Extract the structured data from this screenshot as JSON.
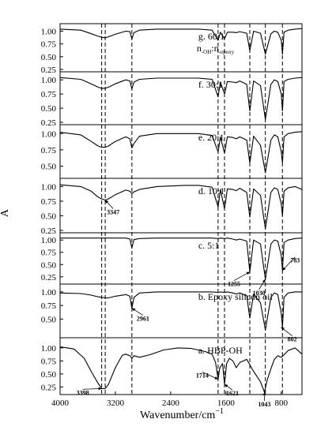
{
  "figure": {
    "xlabel": "Wavenumber/cm",
    "xlabel_exp": "−1",
    "ylabel": "A"
  },
  "chart_data": {
    "type": "line",
    "title": "",
    "xlabel": "Wavenumber/cm−1",
    "ylabel": "A",
    "xlim": [
      4000,
      500
    ],
    "x_reversed": true,
    "x_ticks": [
      "4000",
      "3200",
      "2400",
      "1600",
      "800"
    ],
    "grid": false,
    "reference_lines_cm": [
      3398,
      3347,
      2961,
      1714,
      1621,
      1255,
      1030,
      783
    ],
    "panels": [
      {
        "label": "g. 60:1",
        "label2": "n",
        "label2_sub1": "-OH",
        "label2_mid": ":n",
        "label2_sub2": "-epoxy",
        "ylim": [
          0.25,
          1.1
        ],
        "yticks": [
          "1.00",
          "0.75",
          "0.50",
          "0.25"
        ],
        "x": [
          4000,
          3700,
          3550,
          3450,
          3400,
          3347,
          3300,
          3200,
          3050,
          2990,
          2961,
          2930,
          2850,
          2600,
          2200,
          2000,
          1800,
          1714,
          1680,
          1621,
          1580,
          1500,
          1450,
          1400,
          1300,
          1255,
          1200,
          1100,
          1030,
          950,
          900,
          850,
          800,
          783,
          760,
          700,
          600,
          500
        ],
        "y": [
          1.04,
          1.02,
          0.95,
          0.9,
          0.88,
          0.87,
          0.89,
          0.94,
          1.0,
          0.99,
          0.85,
          0.97,
          1.02,
          1.04,
          1.04,
          1.04,
          1.02,
          0.82,
          0.98,
          0.85,
          0.98,
          0.98,
          0.97,
          0.99,
          0.96,
          0.62,
          1.0,
          0.96,
          0.55,
          0.95,
          1.0,
          0.98,
          0.82,
          0.55,
          0.98,
          1.02,
          1.04,
          1.05
        ]
      },
      {
        "label": "f. 30:1",
        "ylim": [
          0.25,
          1.1
        ],
        "yticks": [
          "1.00",
          "0.75",
          "0.50",
          "0.25"
        ],
        "x": [
          4000,
          3700,
          3550,
          3450,
          3400,
          3347,
          3300,
          3200,
          3050,
          2990,
          2961,
          2930,
          2850,
          2600,
          2200,
          2000,
          1800,
          1714,
          1680,
          1621,
          1580,
          1500,
          1450,
          1400,
          1300,
          1255,
          1200,
          1100,
          1030,
          950,
          900,
          850,
          800,
          783,
          760,
          700,
          600,
          500
        ],
        "y": [
          1.04,
          1.01,
          0.93,
          0.87,
          0.85,
          0.85,
          0.87,
          0.93,
          1.0,
          0.98,
          0.84,
          0.96,
          1.01,
          1.03,
          1.03,
          1.03,
          1.01,
          0.7,
          0.96,
          0.75,
          0.97,
          0.96,
          0.95,
          0.98,
          0.92,
          0.45,
          0.98,
          0.9,
          0.3,
          0.92,
          1.0,
          0.97,
          0.75,
          0.45,
          0.97,
          1.01,
          1.03,
          1.04
        ]
      },
      {
        "label": "e. 20:1",
        "ylim": [
          0.35,
          1.1
        ],
        "yticks": [
          "1.00",
          "0.75",
          "0.50"
        ],
        "x": [
          4000,
          3700,
          3550,
          3450,
          3400,
          3347,
          3300,
          3200,
          3050,
          2990,
          2961,
          2930,
          2850,
          2600,
          2200,
          2000,
          1800,
          1714,
          1680,
          1621,
          1580,
          1500,
          1450,
          1400,
          1300,
          1255,
          1200,
          1100,
          1030,
          950,
          900,
          850,
          800,
          783,
          760,
          700,
          600,
          500
        ],
        "y": [
          1.02,
          0.98,
          0.88,
          0.81,
          0.79,
          0.79,
          0.81,
          0.88,
          0.95,
          0.92,
          0.78,
          0.85,
          0.96,
          1.0,
          1.0,
          1.0,
          0.97,
          0.72,
          0.95,
          0.7,
          0.95,
          0.94,
          0.92,
          0.95,
          0.9,
          0.55,
          0.96,
          0.82,
          0.4,
          0.9,
          0.98,
          0.95,
          0.72,
          0.55,
          0.95,
          1.0,
          1.02,
          1.03
        ]
      },
      {
        "label": "d. 10:1",
        "ylim": [
          0.25,
          1.1
        ],
        "yticks": [
          "1.00",
          "0.75",
          "0.50",
          "0.25"
        ],
        "x": [
          4000,
          3700,
          3550,
          3450,
          3400,
          3347,
          3300,
          3200,
          3050,
          2990,
          2961,
          2930,
          2850,
          2600,
          2200,
          2000,
          1800,
          1714,
          1680,
          1621,
          1580,
          1500,
          1450,
          1400,
          1300,
          1255,
          1200,
          1100,
          1030,
          950,
          900,
          850,
          800,
          783,
          760,
          700,
          600,
          500
        ],
        "y": [
          1.03,
          1.0,
          0.92,
          0.82,
          0.79,
          0.77,
          0.79,
          0.86,
          0.94,
          0.92,
          0.88,
          0.91,
          0.95,
          1.0,
          1.02,
          1.02,
          0.99,
          0.65,
          0.95,
          0.62,
          0.96,
          0.95,
          0.93,
          0.97,
          0.9,
          0.48,
          0.96,
          0.85,
          0.28,
          0.9,
          0.98,
          0.95,
          0.7,
          0.5,
          0.92,
          0.98,
          1.0,
          0.95
        ]
      },
      {
        "label": "c. 5:1",
        "ylim": [
          0.15,
          1.1
        ],
        "yticks": [
          "1.00",
          "0.75",
          "0.50",
          "0.25"
        ],
        "x": [
          4000,
          3700,
          3550,
          3450,
          3400,
          3347,
          3300,
          3200,
          3050,
          2990,
          2961,
          2930,
          2850,
          2600,
          2200,
          2000,
          1800,
          1714,
          1680,
          1621,
          1580,
          1500,
          1450,
          1400,
          1300,
          1255,
          1200,
          1100,
          1030,
          950,
          900,
          850,
          800,
          783,
          760,
          700,
          600,
          500
        ],
        "y": [
          1.04,
          1.04,
          1.04,
          1.04,
          1.04,
          1.04,
          1.04,
          1.04,
          1.04,
          1.02,
          0.84,
          1.01,
          1.03,
          1.04,
          1.04,
          1.04,
          1.04,
          1.03,
          1.04,
          1.03,
          1.04,
          1.02,
          1.0,
          1.02,
          0.98,
          0.35,
          1.0,
          0.92,
          0.2,
          0.92,
          1.0,
          0.98,
          0.68,
          0.38,
          0.95,
          1.0,
          1.03,
          1.04
        ]
      },
      {
        "label": "b. Epoxy silicon oil",
        "ylim": [
          0.2,
          1.1
        ],
        "yticks": [
          "1.00",
          "0.75",
          "0.50"
        ],
        "x": [
          4000,
          3700,
          3550,
          3450,
          3400,
          3347,
          3300,
          3200,
          3050,
          2990,
          2961,
          2930,
          2850,
          2600,
          2200,
          2000,
          1800,
          1714,
          1680,
          1621,
          1580,
          1500,
          1450,
          1400,
          1300,
          1255,
          1200,
          1100,
          1030,
          950,
          900,
          850,
          800,
          783,
          760,
          700,
          600,
          500
        ],
        "y": [
          0.98,
          0.97,
          0.94,
          0.91,
          0.9,
          0.89,
          0.89,
          0.92,
          0.95,
          0.92,
          0.7,
          0.9,
          0.98,
          1.0,
          1.0,
          1.0,
          1.0,
          0.99,
          1.0,
          0.99,
          1.0,
          0.98,
          0.96,
          0.98,
          0.93,
          0.52,
          0.96,
          0.8,
          0.3,
          0.9,
          0.98,
          0.95,
          0.6,
          0.35,
          0.9,
          0.98,
          1.0,
          1.0
        ]
      },
      {
        "label": "a. HBP-OH",
        "ylim": [
          0.15,
          1.15
        ],
        "yticks": [
          "1.00",
          "0.75",
          "0.50",
          "0.25"
        ],
        "x": [
          4000,
          3800,
          3650,
          3550,
          3450,
          3398,
          3347,
          3300,
          3200,
          3100,
          3050,
          2990,
          2961,
          2930,
          2850,
          2700,
          2500,
          2300,
          2100,
          1900,
          1800,
          1750,
          1714,
          1690,
          1650,
          1621,
          1590,
          1550,
          1500,
          1450,
          1400,
          1300,
          1200,
          1100,
          1043,
          1000,
          950,
          900,
          850,
          800,
          750,
          700,
          600,
          500
        ],
        "y": [
          1.02,
          0.98,
          0.8,
          0.55,
          0.32,
          0.22,
          0.22,
          0.3,
          0.62,
          0.86,
          0.88,
          0.85,
          0.8,
          0.85,
          0.82,
          0.87,
          0.96,
          1.0,
          0.99,
          0.93,
          0.88,
          0.72,
          0.4,
          0.62,
          0.7,
          0.3,
          0.7,
          0.8,
          0.75,
          0.62,
          0.72,
          0.78,
          0.55,
          0.35,
          0.15,
          0.4,
          0.6,
          0.78,
          0.85,
          0.82,
          0.88,
          0.95,
          1.0,
          0.88
        ]
      }
    ],
    "annotations": [
      {
        "text": "3347",
        "panel": 3,
        "x": 3347,
        "y": 0.77
      },
      {
        "text": "1255",
        "panel": 4,
        "x": 1255,
        "y": 0.35
      },
      {
        "text": "1030",
        "panel": 4,
        "x": 1030,
        "y": 0.2
      },
      {
        "text": "783",
        "panel": 4,
        "x": 783,
        "y": 0.38
      },
      {
        "text": "2961",
        "panel": 5,
        "x": 2961,
        "y": 0.7
      },
      {
        "text": "802",
        "panel": 5,
        "x": 802,
        "y": 0.35
      },
      {
        "text": "3398",
        "panel": 6,
        "x": 3398,
        "y": 0.22
      },
      {
        "text": "1714",
        "panel": 6,
        "x": 1714,
        "y": 0.4
      },
      {
        "text": "1621",
        "panel": 6,
        "x": 1621,
        "y": 0.3
      },
      {
        "text": "1043",
        "panel": 6,
        "x": 1043,
        "y": 0.15
      }
    ]
  }
}
